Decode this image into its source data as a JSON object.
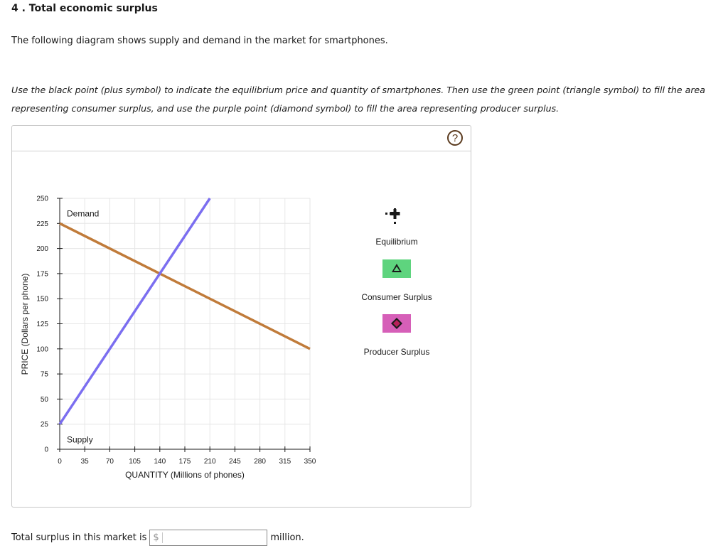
{
  "question": {
    "title": "4 . Total economic surplus",
    "intro": "The following diagram shows supply and demand in the market for smartphones.",
    "instructions": "Use the black point (plus symbol) to indicate the equilibrium price and quantity of smartphones. Then use the green point (triangle symbol) to fill the area representing consumer surplus, and use the purple point (diamond symbol) to fill the area representing producer surplus."
  },
  "panel": {
    "help_label": "?"
  },
  "chart_data": {
    "type": "line",
    "xlabel": "QUANTITY (Millions of phones)",
    "ylabel": "PRICE (Dollars per phone)",
    "xlim": [
      0,
      350
    ],
    "ylim": [
      0,
      250
    ],
    "x_ticks": [
      0,
      35,
      70,
      105,
      140,
      175,
      210,
      245,
      280,
      315,
      350
    ],
    "y_ticks": [
      0,
      25,
      50,
      75,
      100,
      125,
      150,
      175,
      200,
      225,
      250
    ],
    "grid": true,
    "series": [
      {
        "name": "Demand",
        "color": "#c07b3a",
        "x": [
          0,
          350
        ],
        "y": [
          225,
          100
        ]
      },
      {
        "name": "Supply",
        "color": "#7b6ef0",
        "x": [
          0,
          210
        ],
        "y": [
          25,
          250
        ]
      }
    ]
  },
  "tools": {
    "equilibrium": {
      "label": "Equilibrium",
      "icon": "plus-icon",
      "color": "#000000"
    },
    "consumer_surplus": {
      "label": "Consumer Surplus",
      "icon": "triangle-icon",
      "color": "#5ed47e"
    },
    "producer_surplus": {
      "label": "Producer Surplus",
      "icon": "diamond-icon",
      "color": "#d65fb8"
    }
  },
  "answer": {
    "prefix": "Total surplus in this market is",
    "currency": "$",
    "value": "",
    "suffix": "million."
  }
}
